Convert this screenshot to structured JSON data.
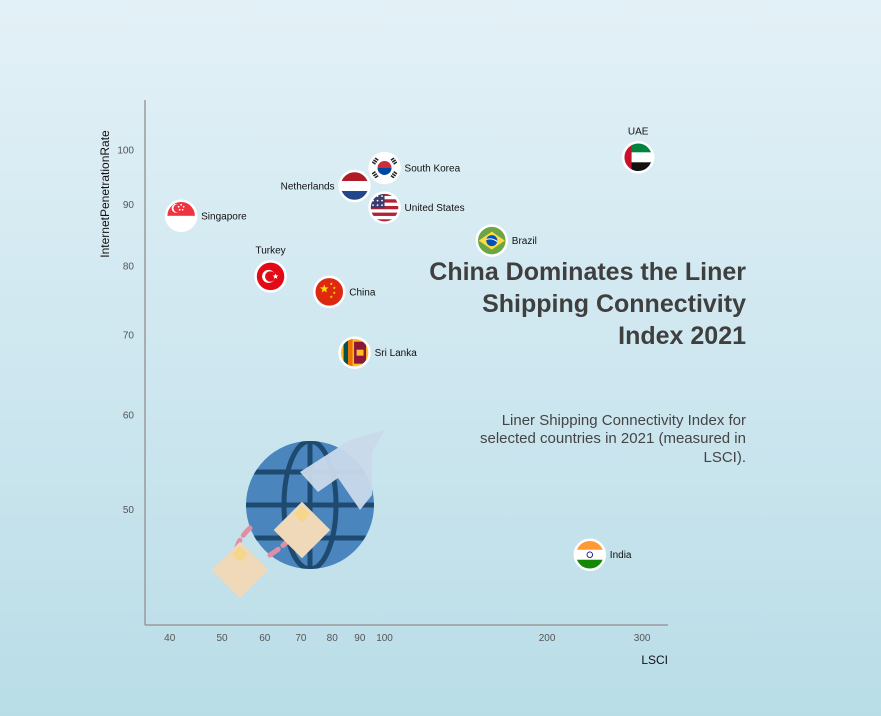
{
  "title": "China Dominates the Liner Shipping Connectivity Index 2021",
  "subtitle": "Liner Shipping Connectivity Index for selected countries in 2021 (measured in LSCI).",
  "chart_data": {
    "type": "scatter",
    "title": "China Dominates the Liner Shipping Connectivity Index 2021",
    "xlabel": "LSCI",
    "ylabel": "InternetPenetrationRate",
    "x_scale": "log",
    "y_scale": "log",
    "xlim": [
      36,
      335
    ],
    "ylim": [
      40,
      110
    ],
    "x_ticks": [
      40,
      50,
      60,
      70,
      80,
      90,
      100,
      200,
      300
    ],
    "y_ticks": [
      50,
      60,
      70,
      80,
      90,
      100
    ],
    "grid": false,
    "points": [
      {
        "label": "UAE",
        "flag": "uae-flag-icon",
        "x": 295,
        "y": 98.5,
        "label_pos": "top"
      },
      {
        "label": "South Korea",
        "flag": "south-korea-flag-icon",
        "x": 100,
        "y": 96.5,
        "label_pos": "right"
      },
      {
        "label": "Netherlands",
        "flag": "netherlands-flag-icon",
        "x": 88,
        "y": 93.2,
        "label_pos": "left"
      },
      {
        "label": "United States",
        "flag": "united-states-flag-icon",
        "x": 100,
        "y": 89.4,
        "label_pos": "right"
      },
      {
        "label": "Singapore",
        "flag": "singapore-flag-icon",
        "x": 42,
        "y": 88,
        "label_pos": "right"
      },
      {
        "label": "Brazil",
        "flag": "brazil-flag-icon",
        "x": 158,
        "y": 83.9,
        "label_pos": "right"
      },
      {
        "label": "Turkey",
        "flag": "turkey-flag-icon",
        "x": 61.5,
        "y": 78.3,
        "label_pos": "top"
      },
      {
        "label": "China",
        "flag": "china-flag-icon",
        "x": 79,
        "y": 76,
        "label_pos": "right"
      },
      {
        "label": "Sri Lanka",
        "flag": "sri-lanka-flag-icon",
        "x": 88,
        "y": 67.6,
        "label_pos": "right"
      },
      {
        "label": "India",
        "flag": "india-flag-icon",
        "x": 240,
        "y": 45.8,
        "label_pos": "right"
      }
    ]
  },
  "colors": {
    "axis": "#9a9a9a",
    "globe": "#4a86bd",
    "globe_lines": "#1f4a70",
    "box": "#efd9b9",
    "box_mark": "#f6d68a",
    "trail": "#df8fa4"
  },
  "decoration": "globe-shipping-icon"
}
